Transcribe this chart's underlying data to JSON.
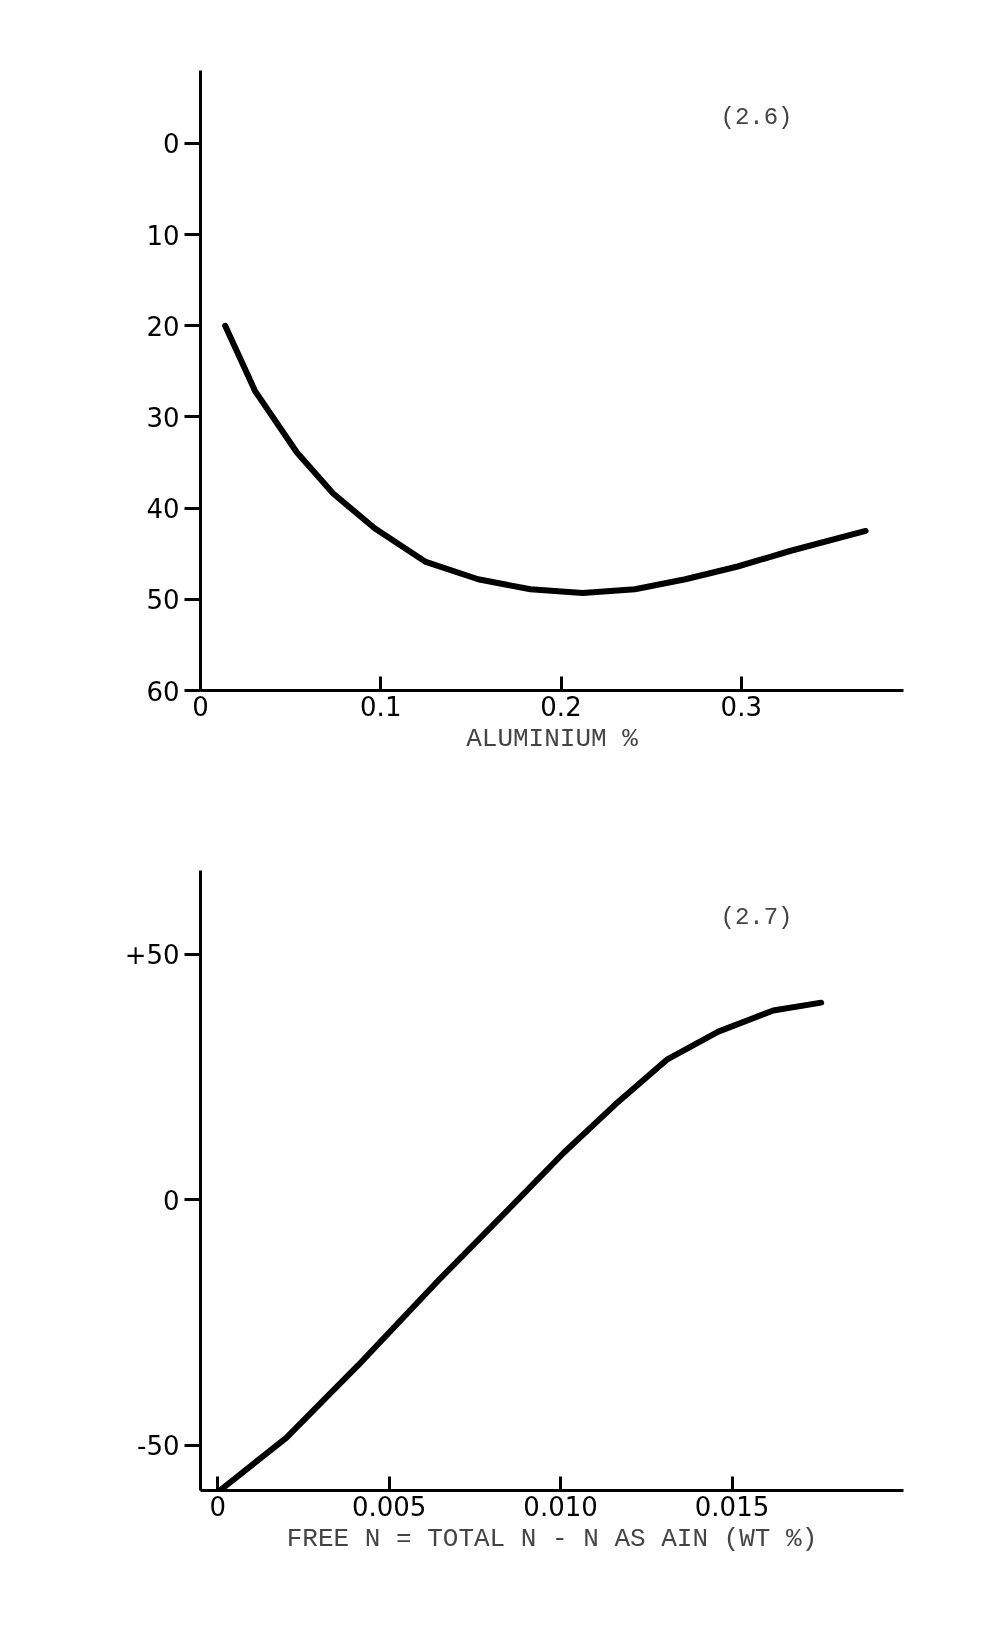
{
  "chart_data": [
    {
      "type": "line",
      "xlabel": "ALUMINIUM %",
      "annotations": [
        "(2.6)"
      ],
      "color": "#000000",
      "line_style": "solid",
      "x": [
        0.0137,
        0.0304,
        0.0535,
        0.0736,
        0.0966,
        0.125,
        0.154,
        0.183,
        0.212,
        0.241,
        0.269,
        0.298,
        0.327,
        0.369
      ],
      "values": [
        20.0,
        27.2,
        33.9,
        38.4,
        42.2,
        45.9,
        47.8,
        48.9,
        49.3,
        48.9,
        47.8,
        46.4,
        44.7,
        42.5
      ],
      "xlim": [
        0,
        0.39
      ],
      "ylim": [
        60,
        -8
      ],
      "xticks": [
        0,
        0.1,
        0.2,
        0.3
      ],
      "yticks": [
        0,
        10,
        20,
        30,
        40,
        50,
        60
      ]
    },
    {
      "type": "line",
      "xlabel": "FREE N = TOTAL N - N AS AIN (WT %)",
      "annotations": [
        "(2.7)"
      ],
      "color": "#000000",
      "line_style": "solid",
      "x": [
        0.0001,
        0.002,
        0.0041,
        0.0064,
        0.0086,
        0.0101,
        0.0116,
        0.0131,
        0.0146,
        0.0162,
        0.0176
      ],
      "values": [
        -59,
        -48.5,
        -33.7,
        -16.7,
        -1.1,
        9.6,
        19.4,
        28.5,
        34.2,
        38.5,
        40.1
      ],
      "xlim": [
        -0.0005,
        0.02
      ],
      "ylim": [
        -59.2,
        67
      ],
      "xticks": [
        0,
        0.005,
        {
          "value": 0.01,
          "label": "0.010"
        },
        0.015
      ],
      "yticks": [
        {
          "value": 50,
          "label": "+50"
        },
        0,
        -50
      ]
    }
  ]
}
